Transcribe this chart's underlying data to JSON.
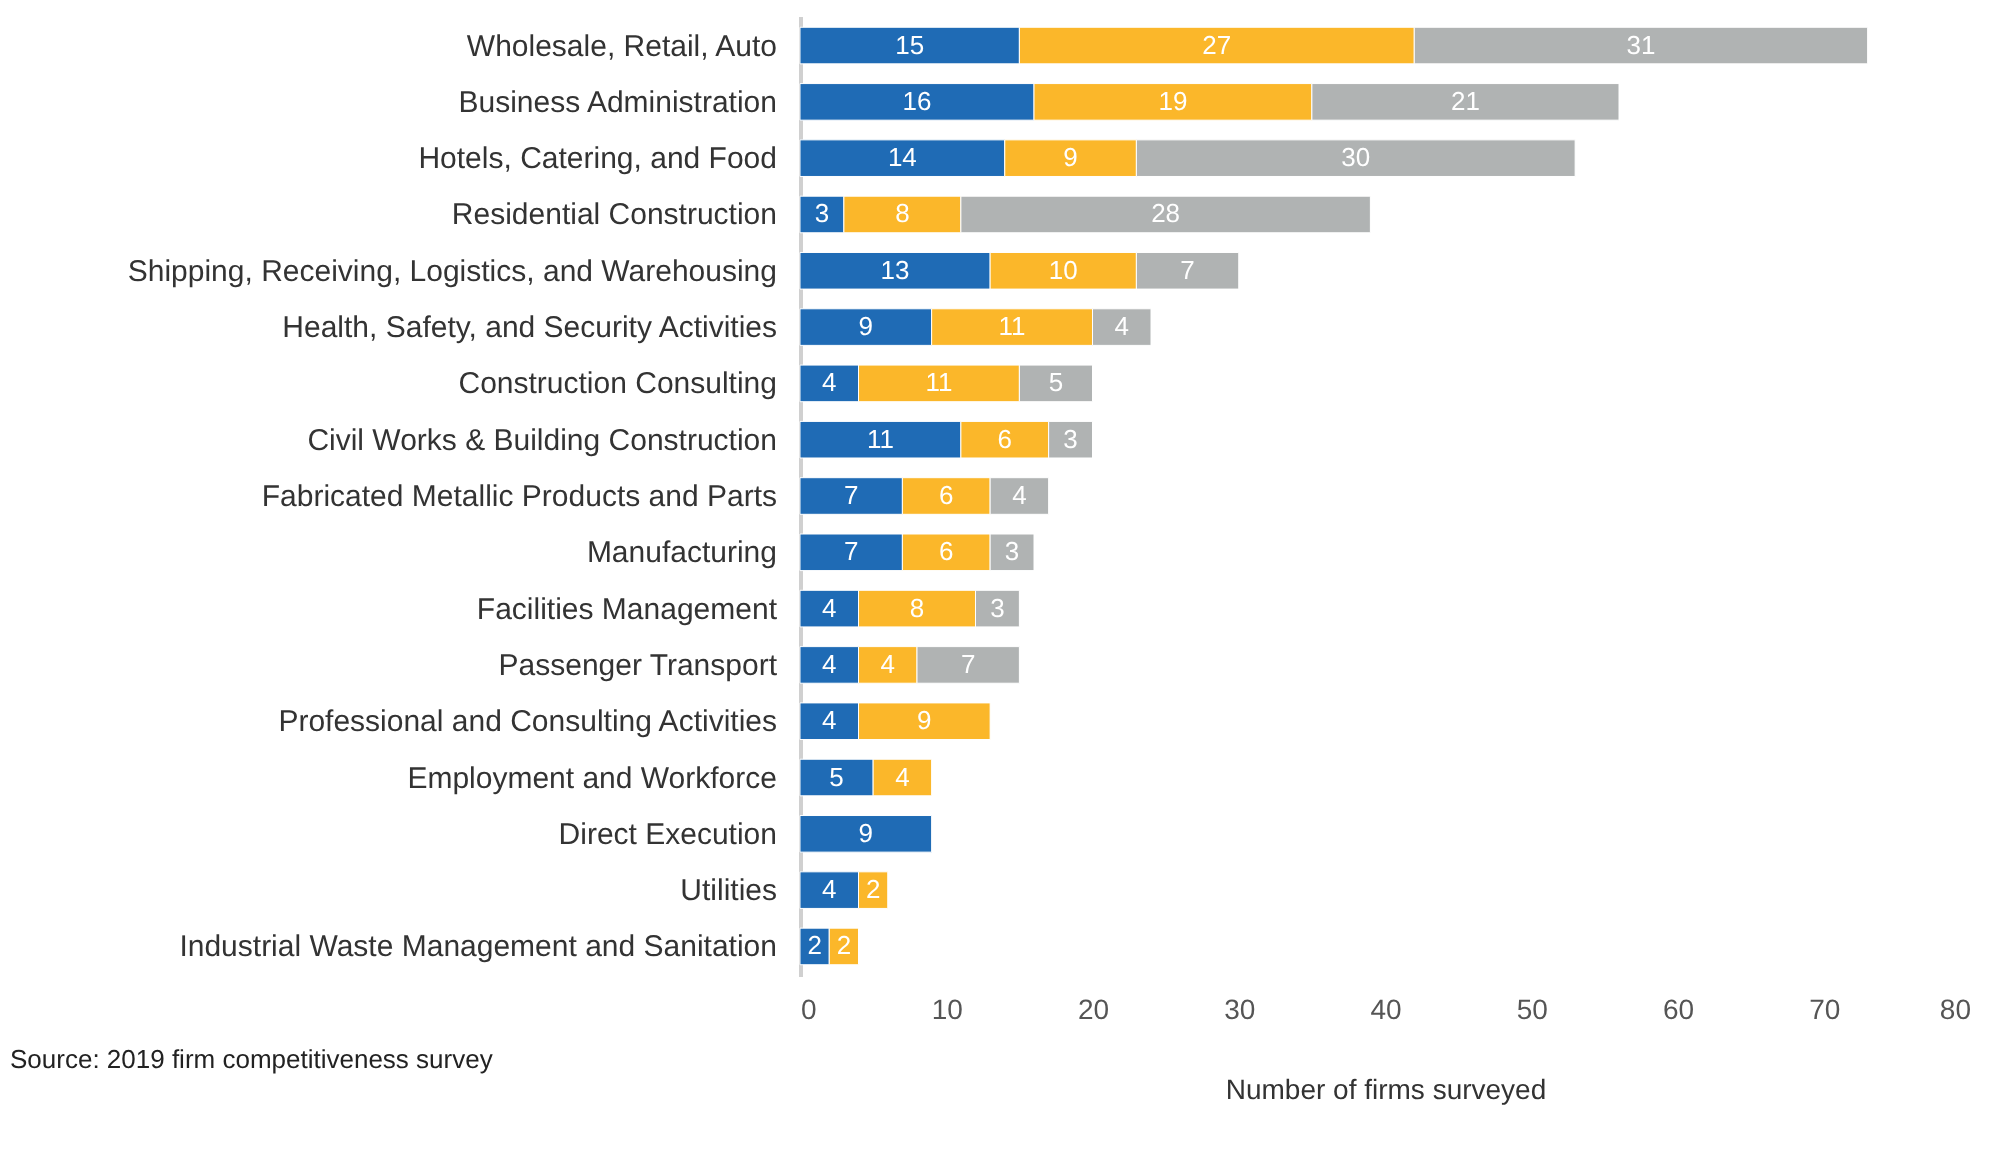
{
  "chart_data": {
    "type": "bar",
    "orientation": "horizontal",
    "stacked": true,
    "data_labels": true,
    "grid": false,
    "legend": false,
    "xlabel": "Number of firms surveyed",
    "annotations": [
      "Source: 2019 firm competitiveness survey"
    ],
    "categories": [
      "Wholesale, Retail, Auto",
      "Business Administration",
      "Hotels, Catering, and Food",
      "Residential Construction",
      "Shipping, Receiving, Logistics, and Warehousing",
      "Health, Safety, and Security Activities",
      "Construction Consulting",
      "Civil Works & Building Construction",
      "Fabricated Metallic Products and Parts",
      "Manufacturing",
      "Facilities Management",
      "Passenger Transport",
      "Professional and Consulting Activities",
      "Employment and Workforce",
      "Direct Execution",
      "Utilities",
      "Industrial Waste Management and Sanitation"
    ],
    "series": [
      {
        "color": "#1f6bb5",
        "values": [
          15,
          16,
          14,
          3,
          13,
          9,
          4,
          11,
          7,
          7,
          4,
          4,
          4,
          5,
          9,
          4,
          2
        ]
      },
      {
        "color": "#fbb72a",
        "values": [
          27,
          19,
          9,
          8,
          10,
          11,
          11,
          6,
          6,
          6,
          8,
          4,
          9,
          4,
          null,
          2,
          2
        ]
      },
      {
        "color": "#b0b3b3",
        "values": [
          31,
          21,
          30,
          28,
          7,
          4,
          5,
          3,
          4,
          3,
          3,
          7,
          null,
          null,
          null,
          null,
          null
        ]
      }
    ],
    "xlim": [
      0,
      80
    ],
    "xticks": [
      0,
      10,
      20,
      30,
      40,
      50,
      60,
      70,
      80
    ]
  }
}
